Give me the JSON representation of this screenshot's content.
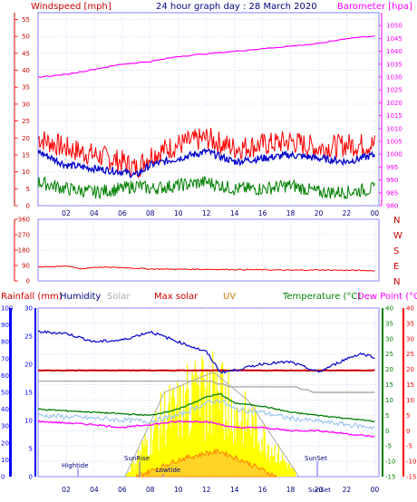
{
  "header": {
    "windspeed_label": "Windspeed [mph]",
    "title": "24 hour graph day : 28 March 2020",
    "barometer_label": "Barometer [hpa]"
  },
  "legend_bottom": {
    "rainfall": "Rainfall (mm)",
    "humidity": "Humidity",
    "solar": "Solar",
    "max_solar": "Max solar",
    "uv": "UV",
    "temperature": "Temperature (°C)",
    "dew_point": "Dew Point (°C)"
  },
  "annotations": {
    "hightide": "Hightide",
    "sunrise": "SunRise",
    "lowtide": "Lowtide",
    "sunset": "SunSet",
    "sunset_axis": "SunSet"
  },
  "colors": {
    "windspeed": "#ff0000",
    "wind_avg": "#0000cc",
    "wind_low": "#008000",
    "barometer": "#ff00ff",
    "humidity": "#0000cc",
    "rainfall": "#cc0000",
    "solar": "#aaaaaa",
    "max_solar": "#aaaaaa",
    "uv": "#ff8000",
    "solar_fill": "#ffff00",
    "temperature": "#008000",
    "dew_point": "#ff00ff",
    "rain_axis": "#0000ff",
    "grid": "#c0c0ff"
  },
  "chart_data": [
    {
      "type": "line",
      "x_ticks": [
        "02",
        "04",
        "06",
        "08",
        "10",
        "12",
        "14",
        "16",
        "18",
        "20",
        "22",
        "00"
      ],
      "y_left_ticks": [
        "0",
        "5",
        "10",
        "15",
        "20",
        "25",
        "30",
        "35",
        "40",
        "45",
        "50",
        "55"
      ],
      "y_right_ticks": [
        "980",
        "985",
        "990",
        "995",
        "1000",
        "1005",
        "1010",
        "1015",
        "1020",
        "1025",
        "1030",
        "1035",
        "1040",
        "1045",
        "1050"
      ],
      "ylim_left": [
        0,
        57
      ],
      "ylim_right": [
        980,
        1055
      ],
      "series": [
        {
          "name": "Windspeed [mph]",
          "hours": [
            0,
            2,
            4,
            6,
            7,
            8,
            10,
            12,
            14,
            16,
            18,
            20,
            22,
            24
          ],
          "values": [
            20,
            17,
            15,
            13,
            11,
            15,
            18,
            20,
            17,
            18,
            19,
            17,
            18,
            18
          ]
        },
        {
          "name": "",
          "hours": [
            0,
            2,
            4,
            6,
            7,
            8,
            10,
            12,
            14,
            16,
            18,
            20,
            22,
            24
          ],
          "values": [
            16,
            12,
            11,
            10,
            9,
            12,
            14,
            16,
            13,
            14,
            15,
            14,
            13,
            15
          ]
        },
        {
          "name": "",
          "hours": [
            0,
            2,
            4,
            6,
            7,
            8,
            10,
            12,
            14,
            16,
            18,
            20,
            22,
            24
          ],
          "values": [
            7,
            5,
            4,
            5,
            6,
            5,
            6,
            7,
            5,
            5,
            6,
            4,
            4,
            5
          ]
        },
        {
          "name": "Barometer [hpa]",
          "hours": [
            0,
            2,
            4,
            6,
            8,
            10,
            12,
            14,
            16,
            18,
            20,
            22,
            24
          ],
          "values": [
            1030,
            1031,
            1033,
            1035,
            1036,
            1038,
            1039,
            1040,
            1041,
            1042,
            1043,
            1045,
            1046
          ]
        }
      ]
    },
    {
      "type": "line",
      "y_left_ticks": [
        "0",
        "90",
        "180",
        "270",
        "360"
      ],
      "y_right_ticks": [
        "N",
        "E",
        "S",
        "W",
        "N"
      ],
      "ylim": [
        0,
        360
      ],
      "series": [
        {
          "name": "",
          "hours": [
            0,
            2,
            3,
            4,
            6,
            8,
            10,
            12,
            14,
            16,
            18,
            20,
            22,
            24
          ],
          "values": [
            80,
            88,
            70,
            80,
            78,
            70,
            68,
            68,
            66,
            65,
            62,
            64,
            62,
            60
          ]
        }
      ]
    },
    {
      "type": "line",
      "y_left_ticks": [
        "0",
        "10",
        "20",
        "30",
        "40",
        "50",
        "60",
        "70",
        "80",
        "90",
        "100"
      ],
      "y_rain_ticks": [
        "0",
        "5",
        "10",
        "15",
        "20",
        "25",
        "30"
      ],
      "y_right_ticks": [
        "-15",
        "-10",
        "-5",
        "0",
        "5",
        "10",
        "15",
        "20",
        "25",
        "30",
        "35",
        "40"
      ],
      "ylim_humidity": [
        0,
        100
      ],
      "ylim_temperature": [
        -15,
        40
      ],
      "series": [
        {
          "name": "Humidity",
          "hours": [
            0,
            2,
            4,
            6,
            8,
            10,
            12,
            13,
            14,
            16,
            18,
            20,
            22,
            23,
            24
          ],
          "values": [
            86,
            85,
            80,
            81,
            86,
            80,
            74,
            62,
            63,
            67,
            68,
            62,
            70,
            73,
            71
          ]
        },
        {
          "name": "Rainfall (mm)",
          "hours": [
            0,
            24
          ],
          "values": [
            18,
            18
          ]
        },
        {
          "name": "Temperature (°C)",
          "hours": [
            0,
            4,
            8,
            10,
            12,
            13,
            14,
            16,
            18,
            20,
            22,
            24
          ],
          "values": [
            7,
            6,
            5,
            7,
            11,
            12,
            9,
            8,
            6,
            5,
            4,
            3
          ]
        },
        {
          "name": "Dew Point (°C)",
          "hours": [
            0,
            4,
            6,
            8,
            10,
            12,
            14,
            16,
            18,
            20,
            22,
            24
          ],
          "values": [
            3,
            2,
            1,
            2,
            3,
            3,
            1,
            1,
            0,
            0,
            -1,
            -2
          ]
        },
        {
          "name": "Solar",
          "hours": [
            0,
            8,
            12,
            14,
            16,
            18,
            20,
            22,
            24
          ],
          "values": [
            17,
            17,
            17,
            16,
            16,
            16,
            15,
            15,
            15
          ]
        },
        {
          "name": "Max solar",
          "hours": [
            6.2,
            9,
            12.5,
            15,
            18.6
          ],
          "values": [
            0,
            50,
            62,
            45,
            0
          ]
        },
        {
          "name": "UV",
          "hours": [
            7,
            10,
            12,
            13,
            15,
            17
          ],
          "values": [
            0,
            10,
            14,
            15,
            8,
            0
          ]
        }
      ]
    }
  ]
}
